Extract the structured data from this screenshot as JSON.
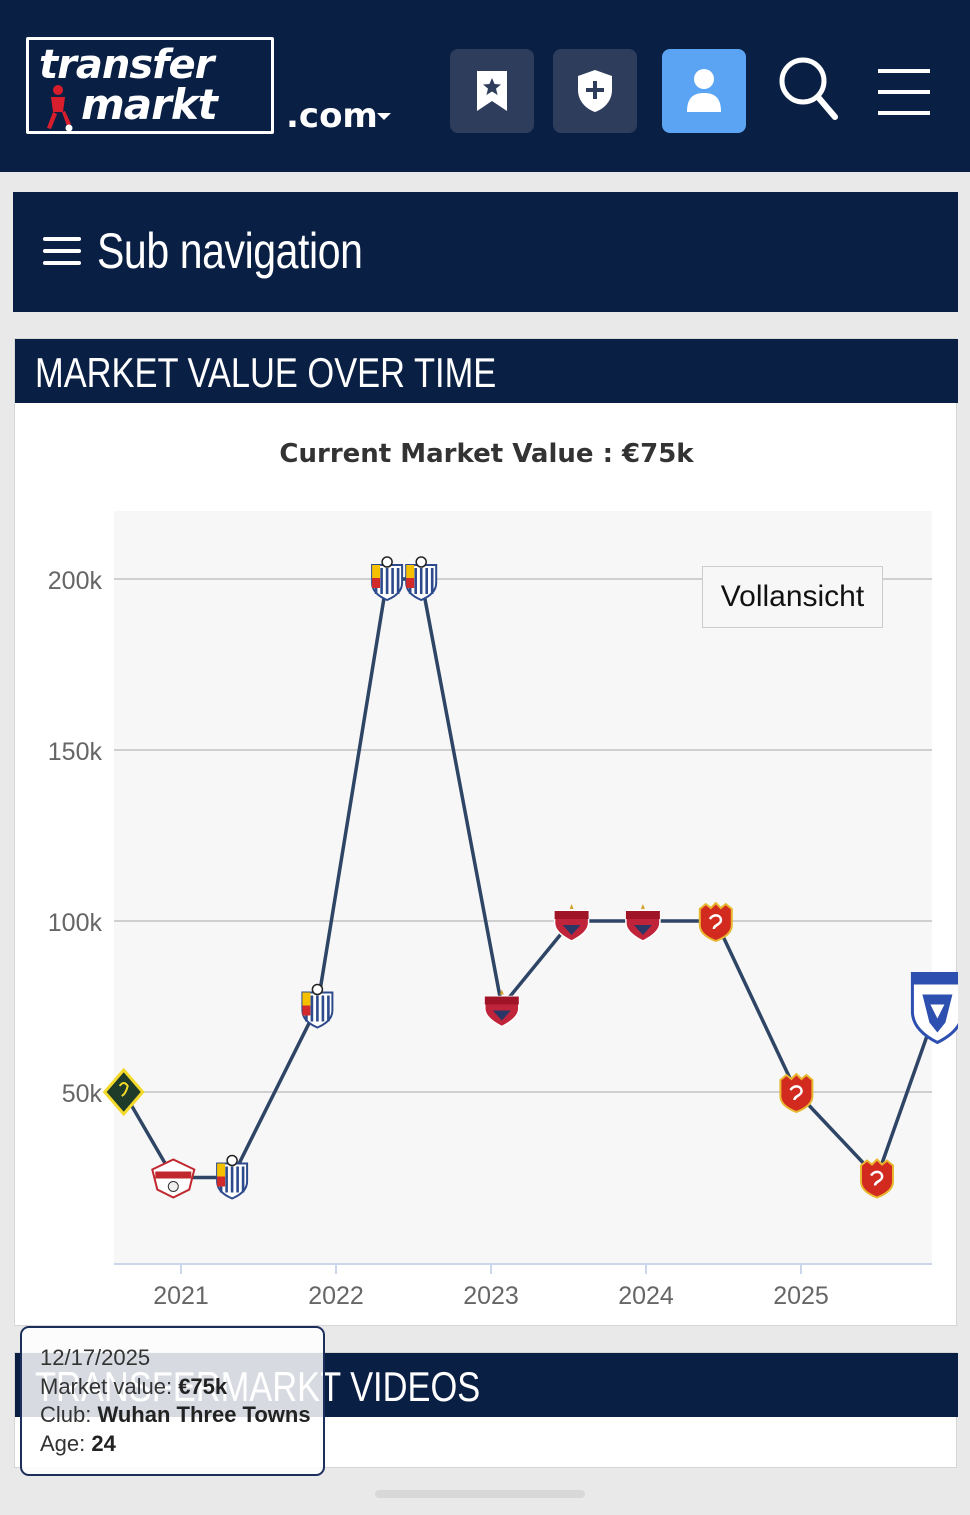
{
  "header": {
    "logo_line1": "transfer",
    "logo_line2": "markt",
    "domain_suffix": ".com",
    "buttons": [
      {
        "icon": "bookmark-icon"
      },
      {
        "icon": "shield-plus-icon"
      },
      {
        "icon": "user-icon",
        "active": true,
        "color": "#5ba3f3"
      },
      {
        "icon": "search-icon"
      },
      {
        "icon": "hamburger-menu-icon"
      }
    ],
    "background": "#0a1f44"
  },
  "subnav": {
    "label": "Sub navigation"
  },
  "market_value": {
    "section_title": "MARKET VALUE OVER TIME",
    "current_value_label": "Current Market Value : €75k",
    "full_view_button": "Vollansicht"
  },
  "chart_data": {
    "type": "line",
    "y_ticks": [
      "50k",
      "100k",
      "150k",
      "200k"
    ],
    "x_ticks": [
      "2021",
      "2022",
      "2023",
      "2024",
      "2025"
    ],
    "ylim": [
      0,
      220000
    ],
    "xlim": [
      2020.57,
      2025.85
    ],
    "grid": true,
    "line_color": "#2e4565",
    "series": [
      {
        "values": [
          {
            "x": 2020.63,
            "y": 50000,
            "club_logo": "stumbling-fc-crest"
          },
          {
            "x": 2020.95,
            "y": 25000,
            "club_logo": "balzan-fc-crest"
          },
          {
            "x": 2021.33,
            "y": 25000,
            "club_logo": "mosta-fc-crest"
          },
          {
            "x": 2021.88,
            "y": 75000,
            "club_logo": "mosta-fc-crest"
          },
          {
            "x": 2022.33,
            "y": 200000,
            "club_logo": "mosta-fc-crest"
          },
          {
            "x": 2022.55,
            "y": 200000,
            "club_logo": "mosta-fc-crest"
          },
          {
            "x": 2023.07,
            "y": 75000,
            "club_logo": "shenzhen-peng-city-crest"
          },
          {
            "x": 2023.52,
            "y": 100000,
            "club_logo": "shenzhen-peng-city-crest"
          },
          {
            "x": 2023.98,
            "y": 100000,
            "club_logo": "shenzhen-peng-city-crest"
          },
          {
            "x": 2024.45,
            "y": 100000,
            "club_logo": "shanghai-port-crest"
          },
          {
            "x": 2024.97,
            "y": 50000,
            "club_logo": "shanghai-port-crest"
          },
          {
            "x": 2025.49,
            "y": 25000,
            "club_logo": "shanghai-port-crest"
          },
          {
            "x": 2025.88,
            "y": 75000,
            "club_logo": "wuhan-three-towns-crest"
          }
        ]
      }
    ]
  },
  "tooltip": {
    "date": "12/17/2025",
    "market_value_label": "Market value:",
    "market_value": "€75k",
    "club_label": "Club:",
    "club": "Wuhan Three Towns",
    "age_label": "Age:",
    "age": "24"
  },
  "videos": {
    "section_title": "TRANSFERMARKT VIDEOS"
  }
}
